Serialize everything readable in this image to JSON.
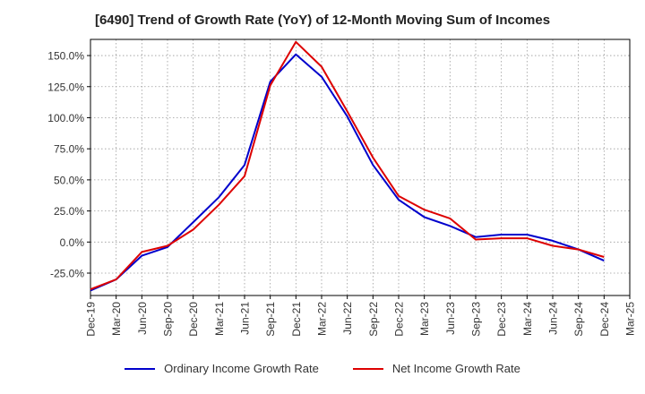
{
  "chart_data": {
    "type": "line",
    "title": "[6490]  Trend of Growth Rate (YoY) of 12-Month Moving Sum of Incomes",
    "xlabel": "",
    "ylabel": "",
    "x_tick_labels": [
      "Dec-19",
      "Mar-20",
      "Jun-20",
      "Sep-20",
      "Dec-20",
      "Mar-21",
      "Jun-21",
      "Sep-21",
      "Dec-21",
      "Mar-22",
      "Jun-22",
      "Sep-22",
      "Dec-22",
      "Mar-23",
      "Jun-23",
      "Sep-23",
      "Dec-23",
      "Mar-24",
      "Jun-24",
      "Sep-24",
      "Dec-24",
      "Mar-25"
    ],
    "y_tick_labels": [
      "150.0%",
      "125.0%",
      "100.0%",
      "75.0%",
      "50.0%",
      "25.0%",
      "0.0%",
      "-25.0%"
    ],
    "y_ticks": [
      150,
      125,
      100,
      75,
      50,
      25,
      0,
      -25
    ],
    "ylim": [
      -43,
      163
    ],
    "grid": true,
    "legend_position": "bottom",
    "categories": [
      "Dec-19",
      "Jan-20",
      "Feb-20",
      "Mar-20",
      "Apr-20",
      "May-20",
      "Jun-20",
      "Jul-20",
      "Aug-20",
      "Sep-20",
      "Oct-20",
      "Nov-20",
      "Dec-20",
      "Jan-21",
      "Feb-21",
      "Mar-21",
      "Apr-21",
      "May-21",
      "Jun-21",
      "Jul-21",
      "Aug-21",
      "Sep-21",
      "Oct-21",
      "Nov-21",
      "Dec-21",
      "Jan-22",
      "Feb-22",
      "Mar-22",
      "Apr-22",
      "May-22",
      "Jun-22",
      "Jul-22",
      "Aug-22",
      "Sep-22",
      "Oct-22",
      "Nov-22",
      "Dec-22",
      "Jan-23",
      "Feb-23",
      "Mar-23",
      "Apr-23",
      "May-23",
      "Jun-23",
      "Jul-23",
      "Aug-23",
      "Sep-23",
      "Oct-23",
      "Nov-23",
      "Dec-23",
      "Jan-24",
      "Feb-24",
      "Mar-24",
      "Apr-24",
      "May-24",
      "Jun-24",
      "Jul-24",
      "Aug-24",
      "Sep-24",
      "Oct-24",
      "Nov-24",
      "Dec-24",
      "Jan-25",
      "Feb-25",
      "Mar-25"
    ],
    "series": [
      {
        "name": "Ordinary Income Growth Rate",
        "color": "#0000cc",
        "values": [
          -39,
          null,
          null,
          -30,
          null,
          null,
          -11,
          null,
          null,
          -4,
          null,
          null,
          16,
          null,
          null,
          36,
          null,
          null,
          62,
          null,
          null,
          129,
          null,
          null,
          151,
          null,
          null,
          133,
          null,
          null,
          101,
          null,
          null,
          62,
          null,
          null,
          34,
          null,
          null,
          20,
          null,
          null,
          13,
          null,
          null,
          4,
          null,
          null,
          6,
          null,
          null,
          6,
          null,
          null,
          1,
          null,
          null,
          -6,
          null,
          null,
          -15,
          null,
          null,
          null
        ]
      },
      {
        "name": "Net Income Growth Rate",
        "color": "#dd0000",
        "values": [
          -38,
          null,
          null,
          -30,
          null,
          null,
          -8,
          null,
          null,
          -3,
          null,
          null,
          10,
          null,
          null,
          30,
          null,
          null,
          53,
          null,
          null,
          126,
          null,
          null,
          161,
          null,
          null,
          141,
          null,
          null,
          105,
          null,
          null,
          68,
          null,
          null,
          37,
          null,
          null,
          26,
          null,
          null,
          19,
          null,
          null,
          2,
          null,
          null,
          3,
          null,
          null,
          3,
          null,
          null,
          -3,
          null,
          null,
          -6,
          null,
          null,
          -12,
          null,
          null,
          null
        ]
      }
    ]
  }
}
